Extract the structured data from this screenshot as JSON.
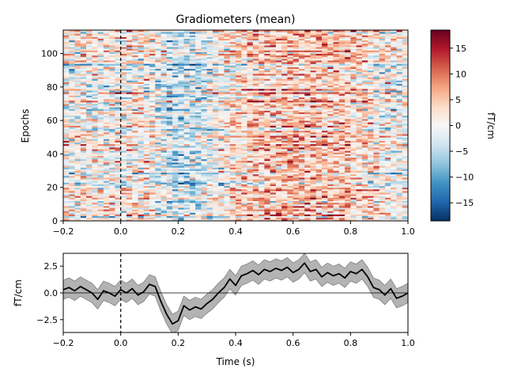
{
  "chart_data": [
    {
      "type": "heatmap",
      "title": "Gradiometers (mean)",
      "ylabel": "Epochs",
      "xlim": [
        -0.2,
        1.0
      ],
      "ylim": [
        0,
        114
      ],
      "n_epochs": 114,
      "n_times": 60,
      "x_ticks": [
        -0.2,
        0.0,
        0.2,
        0.4,
        0.6,
        0.8,
        1.0
      ],
      "x_tick_labels": [
        "−0.2",
        "0.0",
        "0.2",
        "0.4",
        "0.6",
        "0.8",
        "1.0"
      ],
      "y_ticks": [
        0,
        20,
        40,
        60,
        80,
        100
      ],
      "y_tick_labels": [
        "0",
        "20",
        "40",
        "60",
        "80",
        "100"
      ],
      "event_marker_x": 0.0,
      "colormap": "RdBu_r",
      "colorbar": {
        "label": "fT/cm",
        "vmin": -18.5,
        "vmax": 18.5,
        "ticks": [
          15,
          10,
          5,
          0,
          -5,
          -10,
          -15
        ],
        "tick_labels": [
          "15",
          "10",
          "5",
          "0",
          "−5",
          "−10",
          "−15"
        ]
      },
      "epoch_mean_profile": {
        "time_s": [
          -0.2,
          -0.1,
          0.0,
          0.1,
          0.2,
          0.3,
          0.4,
          0.5,
          0.6,
          0.7,
          0.8,
          0.9,
          1.0
        ],
        "mean_fT_cm": [
          0.5,
          0.3,
          0.4,
          0.6,
          -2.0,
          -0.6,
          1.3,
          2.1,
          2.5,
          2.3,
          2.0,
          0.4,
          0.0
        ]
      }
    },
    {
      "type": "line",
      "xlabel": "Time (s)",
      "ylabel": "fT/cm",
      "xlim": [
        -0.2,
        1.0
      ],
      "ylim": [
        -3.7,
        3.7
      ],
      "x_ticks": [
        -0.2,
        0.0,
        0.2,
        0.4,
        0.6,
        0.8,
        1.0
      ],
      "x_tick_labels": [
        "−0.2",
        "0.0",
        "0.2",
        "0.4",
        "0.6",
        "0.8",
        "1.0"
      ],
      "y_ticks": [
        2.5,
        0.0,
        -2.5
      ],
      "y_tick_labels": [
        "2.5",
        "0.0",
        "−2.5"
      ],
      "event_marker_x": 0.0,
      "zero_line": true,
      "ci_halfwidth": 0.9,
      "colors": {
        "mean": "#000000",
        "ci": "#b3b3b3"
      },
      "x": [
        -0.2,
        -0.18,
        -0.16,
        -0.14,
        -0.12,
        -0.1,
        -0.08,
        -0.06,
        -0.04,
        -0.02,
        0.0,
        0.02,
        0.04,
        0.06,
        0.08,
        0.1,
        0.12,
        0.14,
        0.16,
        0.18,
        0.2,
        0.22,
        0.24,
        0.26,
        0.28,
        0.3,
        0.32,
        0.34,
        0.36,
        0.38,
        0.4,
        0.42,
        0.44,
        0.46,
        0.48,
        0.5,
        0.52,
        0.54,
        0.56,
        0.58,
        0.6,
        0.62,
        0.64,
        0.66,
        0.68,
        0.7,
        0.72,
        0.74,
        0.76,
        0.78,
        0.8,
        0.82,
        0.84,
        0.86,
        0.88,
        0.9,
        0.92,
        0.94,
        0.96,
        0.98,
        1.0
      ],
      "y": [
        0.3,
        0.5,
        0.2,
        0.6,
        0.3,
        0.0,
        -0.6,
        0.2,
        0.0,
        -0.3,
        0.3,
        0.0,
        0.4,
        -0.2,
        0.1,
        0.8,
        0.6,
        -0.8,
        -2.0,
        -2.9,
        -2.6,
        -1.2,
        -1.6,
        -1.3,
        -1.5,
        -1.0,
        -0.6,
        0.0,
        0.5,
        1.3,
        0.7,
        1.6,
        1.8,
        2.1,
        1.7,
        2.2,
        2.0,
        2.3,
        2.1,
        2.4,
        1.9,
        2.2,
        2.8,
        2.0,
        2.2,
        1.5,
        1.9,
        1.6,
        1.8,
        1.4,
        2.0,
        1.8,
        2.2,
        1.5,
        0.5,
        0.3,
        -0.2,
        0.4,
        -0.5,
        -0.3,
        0.0
      ]
    }
  ]
}
